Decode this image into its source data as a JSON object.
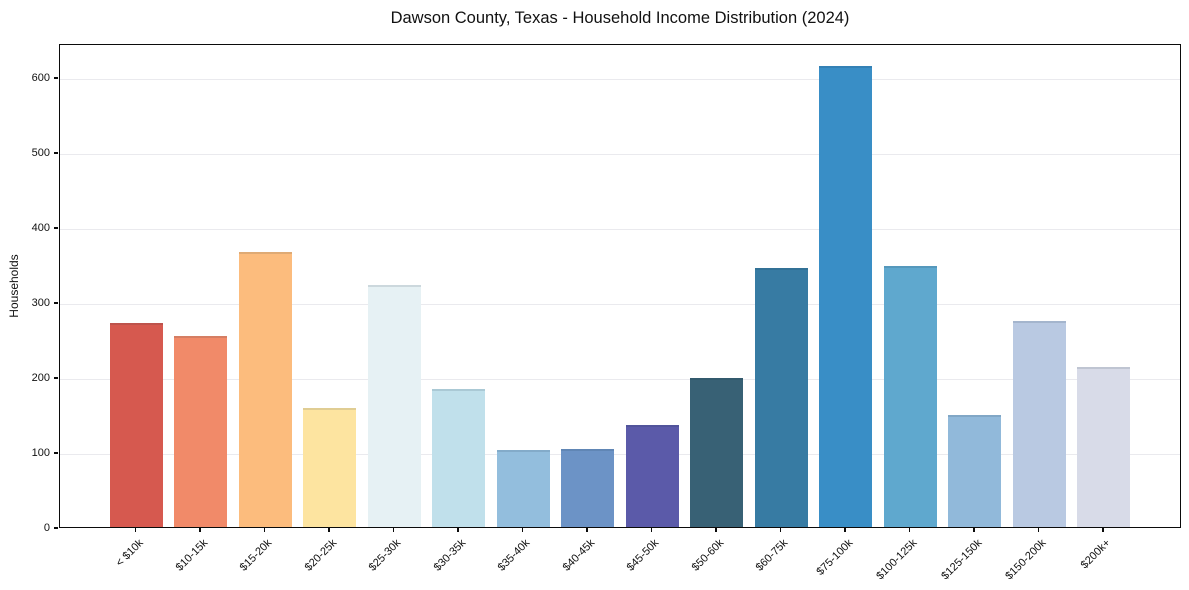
{
  "chart_data": {
    "type": "bar",
    "title": "Dawson County, Texas - Household Income Distribution (2024)",
    "xlabel": "",
    "ylabel": "Households",
    "categories": [
      "< $10k",
      "$10-15k",
      "$15-20k",
      "$20-25k",
      "$25-30k",
      "$30-35k",
      "$35-40k",
      "$40-45k",
      "$45-50k",
      "$50-60k",
      "$60-75k",
      "$75-100k",
      "$100-125k",
      "$125-150k",
      "$150-200k",
      "$200k+"
    ],
    "values": [
      272,
      254,
      367,
      159,
      322,
      184,
      103,
      104,
      136,
      199,
      345,
      614,
      348,
      149,
      274,
      213
    ],
    "bar_colors": [
      "#d6594f",
      "#f18a69",
      "#fcbc7d",
      "#fde4a0",
      "#e6f1f4",
      "#c0e0eb",
      "#93bedd",
      "#6c93c6",
      "#5b5aa9",
      "#386175",
      "#377ba3",
      "#398ec6",
      "#5fa8ce",
      "#91b9da",
      "#b9c9e2",
      "#d8dbe8"
    ],
    "yticks": [
      0,
      100,
      200,
      300,
      400,
      500,
      600
    ],
    "ylim": [
      0,
      645
    ],
    "grid": "horizontal-light",
    "legend": "none",
    "x_tick_rotation_deg": 45,
    "axis_color": "#0b0b0b",
    "gridline_color": "#eaeaee",
    "background_color": "#ffffff"
  }
}
